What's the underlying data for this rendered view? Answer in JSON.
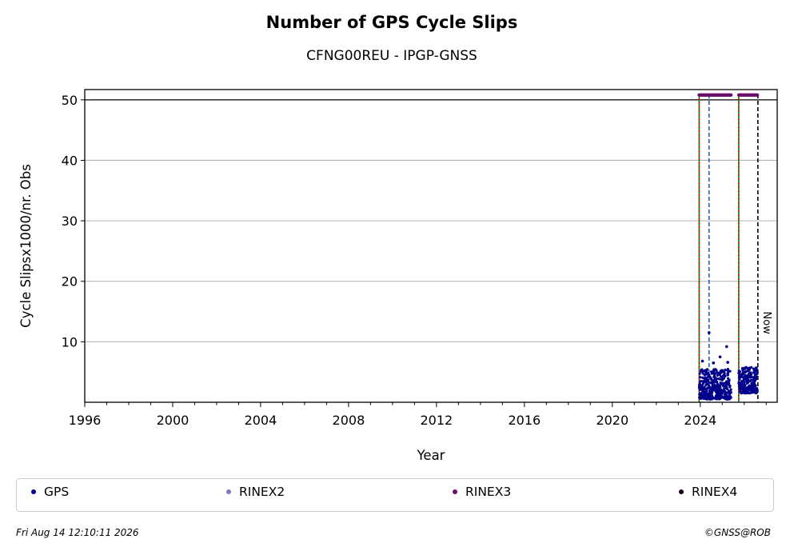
{
  "title": "Number of GPS Cycle Slips",
  "subtitle": "CFNG00REU - IPGP-GNSS",
  "footer": {
    "timestamp": "Fri Aug 14 12:10:11 2026",
    "credit": "©GNSS@ROB"
  },
  "colors": {
    "gps": "#00008b",
    "rinex2": "#7b7bbd",
    "rinex3": "#6b0f6b",
    "rinex4": "#1a0019",
    "event_green": "#008000",
    "event_red": "#ff0000",
    "event_blue": "#1f5fbf",
    "now_line": "#000000",
    "grid": "#b0b0b0"
  },
  "legend": {
    "gps": "GPS",
    "rinex2": "RINEX2",
    "rinex3": "RINEX3",
    "rinex4": "RINEX4"
  },
  "chart_data": {
    "type": "scatter",
    "title": "Number of GPS Cycle Slips",
    "subtitle": "CFNG00REU - IPGP-GNSS",
    "xlabel": "Year",
    "ylabel": "Cycle Slipsx1000/nr. Obs",
    "xlim": [
      1996,
      2027.5
    ],
    "ylim": [
      0,
      51.7
    ],
    "xticks": [
      "1996",
      "2000",
      "2004",
      "2008",
      "2012",
      "2016",
      "2020",
      "2024"
    ],
    "yticks": [
      "10",
      "20",
      "30",
      "40",
      "50"
    ],
    "grid": "horizontal",
    "legend_position": "bottom",
    "reference_line_y": 50,
    "now_label": "Now",
    "event_lines": [
      {
        "x": 2023.95,
        "style": "green-red-dashed"
      },
      {
        "x": 2024.4,
        "style": "blue-dashed"
      },
      {
        "x": 2025.75,
        "style": "green-red-dashed"
      },
      {
        "x": 2026.62,
        "style": "now-dashed"
      }
    ],
    "series": [
      {
        "name": "GPS",
        "segments": [
          {
            "x_start": 2023.95,
            "x_end": 2025.4,
            "y_min": 0.5,
            "y_max": 5.5
          },
          {
            "x_start": 2025.75,
            "x_end": 2026.6,
            "y_min": 1.5,
            "y_max": 5.8
          }
        ],
        "outliers": [
          {
            "x": 2024.4,
            "y": 11.5
          },
          {
            "x": 2025.2,
            "y": 9.2
          },
          {
            "x": 2024.9,
            "y": 7.5
          },
          {
            "x": 2024.1,
            "y": 6.8
          },
          {
            "x": 2024.6,
            "y": 6.5
          },
          {
            "x": 2025.25,
            "y": 6.6
          }
        ]
      },
      {
        "name": "RINEX3",
        "segments": [
          {
            "x_start": 2023.95,
            "x_end": 2025.4,
            "y": 50.8
          },
          {
            "x_start": 2025.75,
            "x_end": 2026.6,
            "y": 50.8
          }
        ]
      }
    ]
  }
}
